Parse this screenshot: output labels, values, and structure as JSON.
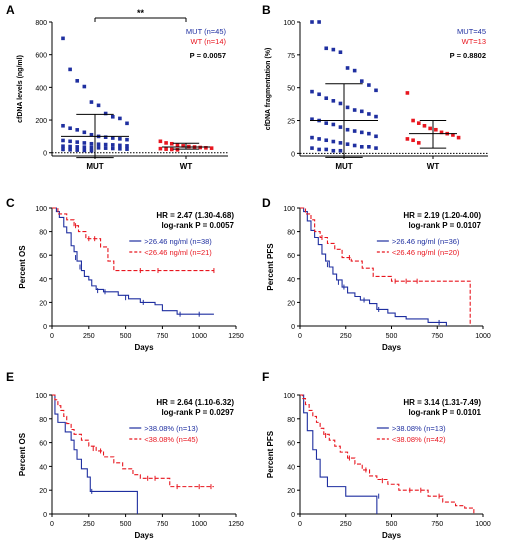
{
  "colors": {
    "mut": "#1f2fa0",
    "wt": "#e8161f",
    "axis": "#000000"
  },
  "chart_data": [
    {
      "panel": "A",
      "type": "scatter",
      "ylabel": "cfDNA levels (ng/ml)",
      "categories": [
        "MUT",
        "WT"
      ],
      "ylim": [
        -20,
        800
      ],
      "yticks": [
        0,
        200,
        400,
        600,
        800
      ],
      "zero_line": true,
      "legend": [
        "MUT (n=45)",
        "WT (n=14)"
      ],
      "legend_position": "top-right",
      "pvalue": "P = 0.0057",
      "bracket": "**",
      "series": [
        {
          "category": "MUT",
          "values": [
            700,
            510,
            440,
            405,
            310,
            290,
            240,
            220,
            210,
            180,
            165,
            150,
            140,
            125,
            110,
            100,
            95,
            90,
            85,
            80,
            75,
            70,
            65,
            60,
            55,
            52,
            50,
            48,
            45,
            42,
            40,
            38,
            36,
            34,
            32,
            30,
            28,
            26,
            24,
            22,
            20,
            18,
            16,
            14,
            12
          ],
          "mean": 100,
          "sd_low": -30,
          "sd_high": 235
        },
        {
          "category": "WT",
          "values": [
            70,
            60,
            55,
            45,
            42,
            38,
            35,
            32,
            30,
            28,
            25,
            22,
            20,
            18
          ],
          "mean": 35,
          "sd_low": 22,
          "sd_high": 58
        }
      ]
    },
    {
      "panel": "B",
      "type": "scatter",
      "ylabel": "cfDNA fragmentation (%)",
      "categories": [
        "MUT",
        "WT"
      ],
      "ylim": [
        -2,
        100
      ],
      "yticks": [
        0,
        25,
        50,
        75,
        100
      ],
      "zero_line": true,
      "legend": [
        "MUT=45",
        "WT=13"
      ],
      "legend_position": "top-right",
      "pvalue": "P = 0.8802",
      "series": [
        {
          "category": "MUT",
          "values": [
            100,
            100,
            80,
            79,
            77,
            65,
            63,
            55,
            52,
            48,
            47,
            45,
            42,
            40,
            38,
            35,
            33,
            32,
            30,
            28,
            26,
            25,
            23,
            22,
            20,
            18,
            17,
            16,
            15,
            13,
            12,
            11,
            10,
            9,
            8,
            7,
            6,
            5,
            5,
            4,
            4,
            3,
            3,
            2,
            2
          ],
          "mean": 25,
          "sd_low": -3,
          "sd_high": 53
        },
        {
          "category": "WT",
          "values": [
            46,
            25,
            23,
            21,
            19,
            18,
            16,
            15,
            14,
            12,
            11,
            10,
            8
          ],
          "mean": 15,
          "sd_low": 4,
          "sd_high": 25
        }
      ]
    },
    {
      "panel": "C",
      "type": "line",
      "xlabel": "Days",
      "ylabel": "Percent OS",
      "xlim": [
        0,
        1250
      ],
      "xticks": [
        0,
        250,
        500,
        750,
        1000,
        1250
      ],
      "ylim": [
        0,
        100
      ],
      "yticks": [
        0,
        20,
        40,
        60,
        80,
        100
      ],
      "hr": "HR = 2.47 (1.30-4.68)",
      "logrank": "log-rank P = 0.0057",
      "series": [
        {
          "name": ">26.46 ng/ml (n=38)",
          "style": "solid",
          "steps": [
            [
              0,
              100
            ],
            [
              30,
              97
            ],
            [
              50,
              92
            ],
            [
              80,
              84
            ],
            [
              100,
              79
            ],
            [
              130,
              68
            ],
            [
              150,
              63
            ],
            [
              170,
              55
            ],
            [
              200,
              47
            ],
            [
              220,
              42
            ],
            [
              250,
              39
            ],
            [
              270,
              34
            ],
            [
              300,
              31
            ],
            [
              350,
              29
            ],
            [
              420,
              29
            ],
            [
              450,
              26
            ],
            [
              520,
              23
            ],
            [
              600,
              20
            ],
            [
              650,
              20
            ],
            [
              700,
              18
            ],
            [
              750,
              13
            ],
            [
              850,
              10
            ],
            [
              1100,
              10
            ]
          ],
          "censors": [
            [
              160,
              58
            ],
            [
              190,
              50
            ],
            [
              310,
              30
            ],
            [
              360,
              29
            ],
            [
              500,
              24
            ],
            [
              620,
              20
            ],
            [
              870,
              10
            ],
            [
              1000,
              10
            ]
          ]
        },
        {
          "name": "<26.46 ng/ml (n=21)",
          "style": "dashed",
          "steps": [
            [
              0,
              100
            ],
            [
              40,
              95
            ],
            [
              100,
              90
            ],
            [
              150,
              85
            ],
            [
              180,
              80
            ],
            [
              230,
              74
            ],
            [
              300,
              74
            ],
            [
              330,
              67
            ],
            [
              380,
              55
            ],
            [
              420,
              47
            ],
            [
              700,
              47
            ],
            [
              1100,
              47
            ]
          ],
          "censors": [
            [
              160,
              85
            ],
            [
              250,
              74
            ],
            [
              290,
              74
            ],
            [
              600,
              47
            ],
            [
              720,
              47
            ],
            [
              1100,
              47
            ]
          ]
        }
      ]
    },
    {
      "panel": "D",
      "type": "line",
      "xlabel": "Days",
      "ylabel": "Percent PFS",
      "xlim": [
        0,
        1000
      ],
      "xticks": [
        0,
        250,
        500,
        750,
        1000
      ],
      "ylim": [
        0,
        100
      ],
      "yticks": [
        0,
        20,
        40,
        60,
        80,
        100
      ],
      "hr": "HR = 2.19 (1.20-4.00)",
      "logrank": "log-rank P = 0.0107",
      "series": [
        {
          "name": ">26.46 ng/ml (n=36)",
          "style": "solid",
          "steps": [
            [
              0,
              100
            ],
            [
              20,
              97
            ],
            [
              40,
              89
            ],
            [
              60,
              81
            ],
            [
              80,
              75
            ],
            [
              100,
              69
            ],
            [
              120,
              61
            ],
            [
              140,
              55
            ],
            [
              160,
              50
            ],
            [
              180,
              44
            ],
            [
              200,
              39
            ],
            [
              230,
              33
            ],
            [
              260,
              28
            ],
            [
              300,
              25
            ],
            [
              330,
              22
            ],
            [
              380,
              19
            ],
            [
              420,
              14
            ],
            [
              480,
              11
            ],
            [
              520,
              8
            ],
            [
              580,
              6
            ],
            [
              700,
              3
            ],
            [
              800,
              0
            ]
          ],
          "censors": [
            [
              150,
              52
            ],
            [
              210,
              37
            ],
            [
              240,
              33
            ],
            [
              350,
              22
            ],
            [
              430,
              14
            ],
            [
              760,
              3
            ]
          ]
        },
        {
          "name": "<26.46 ng/ml (n=20)",
          "style": "dashed",
          "steps": [
            [
              0,
              100
            ],
            [
              30,
              95
            ],
            [
              60,
              90
            ],
            [
              80,
              80
            ],
            [
              110,
              75
            ],
            [
              150,
              70
            ],
            [
              190,
              65
            ],
            [
              230,
              58
            ],
            [
              280,
              55
            ],
            [
              340,
              49
            ],
            [
              400,
              42
            ],
            [
              500,
              38
            ],
            [
              930,
              38
            ],
            [
              930,
              0
            ]
          ],
          "censors": [
            [
              120,
              75
            ],
            [
              270,
              58
            ],
            [
              520,
              38
            ],
            [
              580,
              38
            ],
            [
              640,
              38
            ]
          ]
        }
      ]
    },
    {
      "panel": "E",
      "type": "line",
      "xlabel": "Days",
      "ylabel": "Percent OS",
      "xlim": [
        0,
        1250
      ],
      "xticks": [
        0,
        250,
        500,
        750,
        1000,
        1250
      ],
      "ylim": [
        0,
        100
      ],
      "yticks": [
        0,
        20,
        40,
        60,
        80,
        100
      ],
      "hr": "HR = 2.64 (1.10-6.32)",
      "logrank": "log-rank P = 0.0297",
      "series": [
        {
          "name": ">38.08% (n=13)",
          "style": "solid",
          "steps": [
            [
              0,
              100
            ],
            [
              20,
              84
            ],
            [
              40,
              77
            ],
            [
              90,
              69
            ],
            [
              130,
              62
            ],
            [
              150,
              54
            ],
            [
              170,
              46
            ],
            [
              200,
              38
            ],
            [
              240,
              31
            ],
            [
              260,
              19
            ],
            [
              580,
              19
            ],
            [
              580,
              0
            ]
          ],
          "censors": [
            [
              270,
              19
            ]
          ]
        },
        {
          "name": "<38.08% (n=45)",
          "style": "dashed",
          "steps": [
            [
              0,
              100
            ],
            [
              20,
              96
            ],
            [
              40,
              91
            ],
            [
              60,
              87
            ],
            [
              80,
              82
            ],
            [
              100,
              76
            ],
            [
              130,
              71
            ],
            [
              150,
              67
            ],
            [
              200,
              62
            ],
            [
              250,
              57
            ],
            [
              300,
              53
            ],
            [
              350,
              48
            ],
            [
              420,
              43
            ],
            [
              480,
              38
            ],
            [
              550,
              33
            ],
            [
              600,
              30
            ],
            [
              750,
              30
            ],
            [
              800,
              23
            ],
            [
              1100,
              23
            ]
          ],
          "censors": [
            [
              280,
              55
            ],
            [
              330,
              53
            ],
            [
              650,
              30
            ],
            [
              700,
              30
            ],
            [
              850,
              23
            ],
            [
              1000,
              23
            ],
            [
              1080,
              23
            ]
          ]
        }
      ]
    },
    {
      "panel": "F",
      "type": "line",
      "xlabel": "Days",
      "ylabel": "Percent PFS",
      "xlim": [
        0,
        1000
      ],
      "xticks": [
        0,
        250,
        500,
        750,
        1000
      ],
      "ylim": [
        0,
        100
      ],
      "yticks": [
        0,
        20,
        40,
        60,
        80,
        100
      ],
      "hr": "HR = 3.14 (1.31-7.49)",
      "logrank": "log-rank P = 0.0101",
      "series": [
        {
          "name": ">38.08% (n=13)",
          "style": "solid",
          "steps": [
            [
              0,
              100
            ],
            [
              20,
              85
            ],
            [
              40,
              70
            ],
            [
              70,
              54
            ],
            [
              90,
              46
            ],
            [
              110,
              31
            ],
            [
              150,
              23
            ],
            [
              250,
              15
            ],
            [
              420,
              15
            ],
            [
              420,
              0
            ]
          ],
          "censors": [
            [
              430,
              15
            ]
          ]
        },
        {
          "name": "<38.08% (n=42)",
          "style": "dashed",
          "steps": [
            [
              0,
              100
            ],
            [
              15,
              97
            ],
            [
              30,
              92
            ],
            [
              50,
              87
            ],
            [
              70,
              82
            ],
            [
              90,
              77
            ],
            [
              110,
              72
            ],
            [
              130,
              67
            ],
            [
              160,
              62
            ],
            [
              190,
              57
            ],
            [
              220,
              52
            ],
            [
              260,
              47
            ],
            [
              300,
              42
            ],
            [
              340,
              37
            ],
            [
              380,
              32
            ],
            [
              420,
              29
            ],
            [
              480,
              25
            ],
            [
              540,
              20
            ],
            [
              640,
              20
            ],
            [
              700,
              15
            ],
            [
              780,
              10
            ],
            [
              850,
              7
            ],
            [
              900,
              5
            ],
            [
              950,
              0
            ]
          ],
          "censors": [
            [
              140,
              66
            ],
            [
              270,
              47
            ],
            [
              360,
              37
            ],
            [
              450,
              28
            ],
            [
              600,
              20
            ],
            [
              660,
              20
            ],
            [
              760,
              15
            ]
          ]
        }
      ]
    }
  ]
}
